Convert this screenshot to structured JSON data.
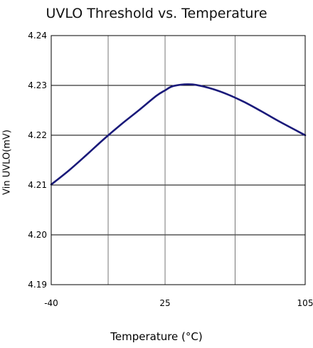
{
  "chart_data": {
    "type": "line",
    "title": "UVLO Threshold vs. Temperature",
    "xlabel": "Temperature (°C)",
    "ylabel": "Vin UVLO(mV)",
    "xlim": [
      -40,
      105
    ],
    "ylim": [
      4.19,
      4.24
    ],
    "x_ticks": [
      -40,
      25,
      105
    ],
    "x_tick_labels": [
      "-40",
      "25",
      "105"
    ],
    "x_grid": [
      -40,
      -7.5,
      25,
      65,
      105
    ],
    "y_ticks": [
      4.19,
      4.2,
      4.21,
      4.22,
      4.23,
      4.24
    ],
    "y_tick_labels": [
      "4.19",
      "4.20",
      "4.21",
      "4.22",
      "4.23",
      "4.24"
    ],
    "grid": true,
    "series": [
      {
        "color": "#1a1a7a",
        "x": [
          -40,
          -30,
          -20,
          -10,
          0,
          10,
          20,
          25,
          30,
          40,
          50,
          60,
          70,
          80,
          90,
          105
        ],
        "y": [
          4.2101,
          4.2129,
          4.216,
          4.2192,
          4.2222,
          4.225,
          4.2279,
          4.229,
          4.2299,
          4.2302,
          4.2295,
          4.2283,
          4.2267,
          4.2248,
          4.2228,
          4.22
        ]
      }
    ]
  }
}
